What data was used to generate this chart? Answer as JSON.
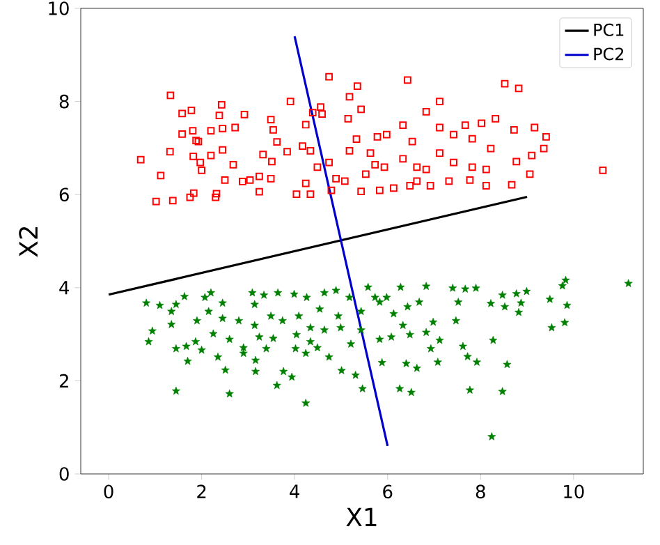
{
  "chart_data": {
    "type": "scatter",
    "xlabel": "X1",
    "ylabel": "X2",
    "xlim": [
      -0.6,
      11.5
    ],
    "ylim": [
      0,
      10
    ],
    "xticks": [
      0,
      2,
      4,
      6,
      8,
      10
    ],
    "yticks": [
      0,
      2,
      4,
      6,
      8,
      10
    ],
    "legend": "top right",
    "series": [
      {
        "color": "#ff0000",
        "marker": "square",
        "x": [
          1.33,
          0.69,
          1.02,
          1.38,
          1.75,
          1.83,
          2.3,
          2.32,
          1.58,
          1.78,
          2.43,
          2.38,
          2.92,
          1.58,
          1.81,
          2.2,
          2.45,
          2.72,
          1.93,
          1.88,
          2.45,
          1.32,
          1.82,
          2.2,
          1.12,
          1.97,
          2.0,
          2.5,
          2.68,
          2.88,
          3.04,
          3.24,
          3.24,
          3.49,
          3.32,
          3.51,
          3.49,
          3.54,
          3.62,
          3.84,
          3.91,
          4.24,
          4.39,
          4.74,
          4.56,
          4.59,
          4.17,
          4.34,
          4.49,
          4.74,
          4.89,
          4.24,
          4.04,
          4.34,
          4.79,
          5.08,
          5.18,
          5.35,
          5.43,
          5.15,
          5.33,
          5.18,
          5.63,
          5.78,
          5.93,
          5.43,
          5.83,
          6.13,
          6.43,
          6.33,
          6.53,
          6.33,
          6.63,
          6.92,
          7.12,
          6.83,
          7.12,
          7.42,
          7.12,
          7.42,
          6.83,
          7.32,
          7.82,
          8.12,
          8.22,
          8.02,
          8.32,
          8.72,
          8.52,
          8.82,
          9.16,
          9.41,
          9.36,
          9.1,
          8.77,
          9.06,
          8.67,
          8.12,
          7.77,
          10.63,
          7.82,
          7.67,
          5.98,
          5.73,
          6.48,
          6.63,
          5.53
        ],
        "values": [
          8.13,
          6.75,
          5.85,
          5.87,
          5.94,
          6.03,
          5.94,
          6.02,
          7.74,
          7.81,
          7.93,
          7.7,
          7.72,
          7.3,
          7.37,
          7.37,
          7.42,
          7.44,
          7.14,
          7.16,
          6.96,
          6.92,
          6.82,
          6.84,
          6.41,
          6.69,
          6.52,
          6.31,
          6.64,
          6.28,
          6.31,
          6.39,
          6.06,
          6.34,
          6.86,
          6.71,
          7.61,
          7.39,
          7.13,
          6.92,
          8.0,
          7.5,
          7.76,
          8.53,
          7.88,
          7.73,
          7.04,
          6.94,
          6.59,
          6.69,
          6.34,
          6.24,
          6.01,
          6.01,
          6.09,
          6.29,
          8.1,
          8.33,
          7.83,
          7.63,
          7.19,
          6.94,
          6.89,
          7.24,
          6.59,
          6.07,
          6.09,
          6.14,
          8.46,
          7.49,
          7.14,
          6.77,
          6.29,
          6.19,
          8.0,
          7.78,
          7.44,
          7.29,
          6.89,
          6.69,
          6.54,
          6.29,
          6.59,
          6.54,
          6.99,
          7.53,
          7.63,
          7.39,
          8.38,
          8.28,
          7.44,
          7.24,
          6.99,
          6.84,
          6.71,
          6.44,
          6.21,
          6.19,
          6.31,
          6.52,
          7.2,
          7.49,
          7.29,
          6.64,
          6.19,
          6.59,
          6.44
        ]
      },
      {
        "color": "#008000",
        "marker": "star",
        "x": [
          0.81,
          1.1,
          1.35,
          1.45,
          1.63,
          2.07,
          2.2,
          2.45,
          0.94,
          0.86,
          1.35,
          1.45,
          1.67,
          1.7,
          1.87,
          2.0,
          1.9,
          2.15,
          2.25,
          2.35,
          2.45,
          2.51,
          2.6,
          1.45,
          2.6,
          2.8,
          2.9,
          2.9,
          3.09,
          3.14,
          3.14,
          3.16,
          3.16,
          3.24,
          3.34,
          3.49,
          3.54,
          3.64,
          3.62,
          3.76,
          3.94,
          3.99,
          4.02,
          4.09,
          4.24,
          4.26,
          4.34,
          4.34,
          4.49,
          4.54,
          4.64,
          4.74,
          4.89,
          4.94,
          4.99,
          5.01,
          5.18,
          5.21,
          5.31,
          5.46,
          5.43,
          5.58,
          5.73,
          5.83,
          5.88,
          5.98,
          6.08,
          6.13,
          6.28,
          6.33,
          6.26,
          6.4,
          6.48,
          6.51,
          6.63,
          6.68,
          6.83,
          6.83,
          6.93,
          6.98,
          7.08,
          7.12,
          7.4,
          7.47,
          7.52,
          7.62,
          7.67,
          7.72,
          7.77,
          7.9,
          7.92,
          8.22,
          8.27,
          8.47,
          8.52,
          8.47,
          8.57,
          8.77,
          8.87,
          8.82,
          8.99,
          9.49,
          9.53,
          9.76,
          9.83,
          9.86,
          9.81,
          11.18,
          8.24,
          5.43,
          4.64,
          4.04,
          3.74,
          3.39,
          5.83,
          6.43,
          4.24
        ],
        "values": [
          3.67,
          3.62,
          3.49,
          3.64,
          3.81,
          3.79,
          3.89,
          3.67,
          3.07,
          2.84,
          3.21,
          2.69,
          2.74,
          2.42,
          2.84,
          2.66,
          3.29,
          3.49,
          3.01,
          2.51,
          3.34,
          2.23,
          2.89,
          1.78,
          1.72,
          3.29,
          2.71,
          2.59,
          3.89,
          3.64,
          3.19,
          2.44,
          2.2,
          2.94,
          3.84,
          3.39,
          2.91,
          3.89,
          1.9,
          2.2,
          2.08,
          3.86,
          2.69,
          3.39,
          1.52,
          3.79,
          3.14,
          2.84,
          2.71,
          3.54,
          3.89,
          2.51,
          3.94,
          3.39,
          3.14,
          2.22,
          3.79,
          2.79,
          2.12,
          1.83,
          3.49,
          4.01,
          3.79,
          2.89,
          2.39,
          3.79,
          2.94,
          3.44,
          4.01,
          3.19,
          1.83,
          2.37,
          2.99,
          1.75,
          2.27,
          3.69,
          4.03,
          3.04,
          2.69,
          3.26,
          2.4,
          2.87,
          3.99,
          3.29,
          3.69,
          2.74,
          3.97,
          2.52,
          1.8,
          3.99,
          2.4,
          3.66,
          2.87,
          3.84,
          3.59,
          1.77,
          2.35,
          3.87,
          3.67,
          3.47,
          3.92,
          3.75,
          3.14,
          4.04,
          4.16,
          3.62,
          3.25,
          4.09,
          0.8,
          3.09,
          3.09,
          2.99,
          3.29,
          2.69,
          3.69,
          3.59,
          2.59
        ]
      },
      {
        "type": "line",
        "name": "PC1",
        "color": "#000000",
        "x": [
          0,
          9
        ],
        "values": [
          3.85,
          5.95
        ]
      },
      {
        "type": "line",
        "name": "PC2",
        "color": "#0000cc",
        "x": [
          4,
          6
        ],
        "values": [
          9.4,
          0.6
        ]
      }
    ]
  }
}
